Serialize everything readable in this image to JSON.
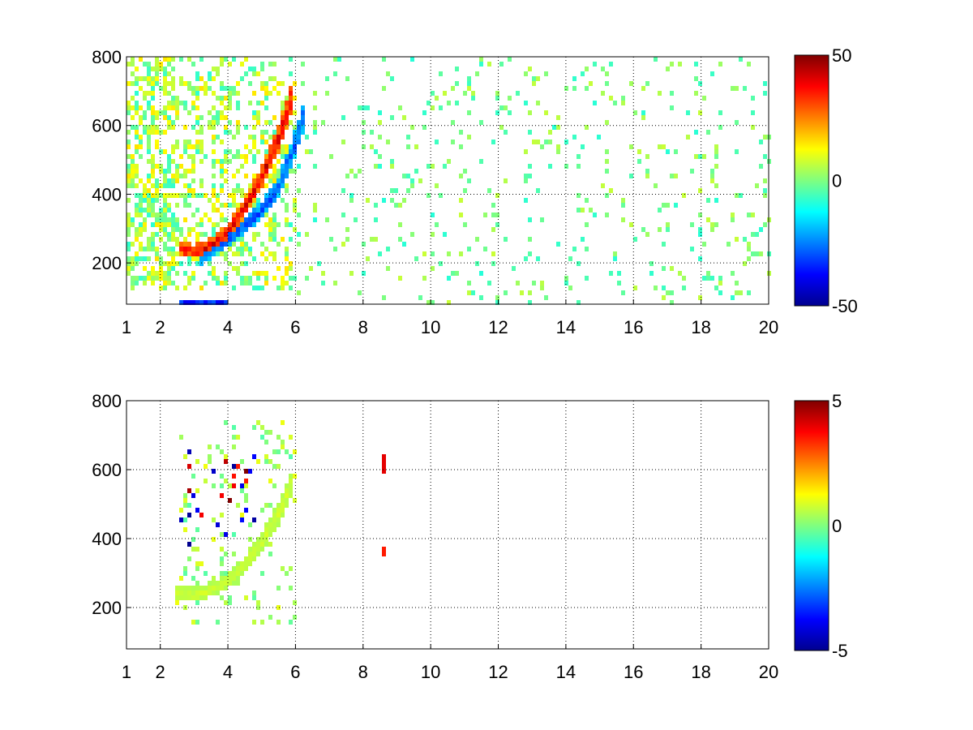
{
  "figure": {
    "background": "#ffffff"
  },
  "chart_data": [
    {
      "type": "heatmap",
      "title": "",
      "xlabel": "",
      "ylabel": "",
      "xlim": [
        1,
        20
      ],
      "ylim": [
        80,
        800
      ],
      "x_scale": "linear",
      "x_ticks": [
        1,
        2,
        4,
        6,
        8,
        10,
        12,
        14,
        16,
        18,
        20
      ],
      "x_tick_labels": [
        "1",
        "2",
        "4",
        "6",
        "8",
        "10",
        "12",
        "14",
        "16",
        "18",
        "20"
      ],
      "y_ticks": [
        200,
        400,
        600,
        800
      ],
      "y_tick_labels": [
        "200",
        "400",
        "600",
        "800"
      ],
      "grid": true,
      "grid_style": "dotted",
      "colormap": "jet",
      "clim": [
        -50,
        50
      ],
      "colorbar_ticks": [
        50,
        0,
        -50
      ],
      "colorbar_tick_labels": [
        "50",
        "0",
        "-50"
      ],
      "features": [
        {
          "kind": "ridge",
          "sign": "positive",
          "points": [
            [
              2.6,
              240
            ],
            [
              3.0,
              232
            ],
            [
              3.5,
              250
            ],
            [
              4.0,
              290
            ],
            [
              4.5,
              360
            ],
            [
              5.0,
              450
            ],
            [
              5.5,
              560
            ],
            [
              5.9,
              680
            ]
          ],
          "value": 40
        },
        {
          "kind": "ridge",
          "sign": "negative",
          "points": [
            [
              3.2,
              205
            ],
            [
              3.8,
              255
            ],
            [
              4.4,
              300
            ],
            [
              5.0,
              350
            ],
            [
              5.5,
              420
            ],
            [
              5.9,
              520
            ],
            [
              6.3,
              640
            ]
          ],
          "value": -30
        },
        {
          "kind": "band",
          "sign": "negative",
          "x_range": [
            2.5,
            4.0
          ],
          "y_range": [
            80,
            95
          ],
          "value": -40
        }
      ],
      "noise_region": {
        "x_range": [
          6,
          20
        ],
        "value_range": [
          -10,
          8
        ]
      }
    },
    {
      "type": "heatmap",
      "title": "",
      "xlabel": "",
      "ylabel": "",
      "xlim": [
        1,
        20
      ],
      "ylim": [
        80,
        800
      ],
      "x_scale": "linear",
      "x_ticks": [
        1,
        2,
        4,
        6,
        8,
        10,
        12,
        14,
        16,
        18,
        20
      ],
      "x_tick_labels": [
        "1",
        "2",
        "4",
        "6",
        "8",
        "10",
        "12",
        "14",
        "16",
        "18",
        "20"
      ],
      "y_ticks": [
        200,
        400,
        600,
        800
      ],
      "y_tick_labels": [
        "200",
        "400",
        "600",
        "800"
      ],
      "grid": true,
      "grid_style": "dotted",
      "colormap": "jet",
      "clim": [
        -5,
        5
      ],
      "colorbar_ticks": [
        5,
        0,
        -5
      ],
      "colorbar_tick_labels": [
        "5",
        "0",
        "-5"
      ],
      "features": [
        {
          "kind": "ridge",
          "sign": "slightly-positive",
          "points": [
            [
              2.4,
              240
            ],
            [
              3.0,
              235
            ],
            [
              3.5,
              250
            ],
            [
              4.0,
              275
            ],
            [
              4.5,
              320
            ],
            [
              5.0,
              390
            ],
            [
              5.5,
              470
            ],
            [
              5.9,
              560
            ]
          ],
          "value": 0.8
        },
        {
          "kind": "scatter",
          "sign": "mixed-strong",
          "x_range": [
            2.5,
            4.8
          ],
          "y_range": [
            380,
            660
          ],
          "value_range": [
            -5,
            5
          ]
        },
        {
          "kind": "column",
          "sign": "strong",
          "x": 8.65,
          "y_range": [
            590,
            650
          ],
          "value": 4
        },
        {
          "kind": "column",
          "sign": "strong",
          "x": 8.65,
          "y_range": [
            355,
            380
          ],
          "value": 3.5
        }
      ]
    }
  ]
}
